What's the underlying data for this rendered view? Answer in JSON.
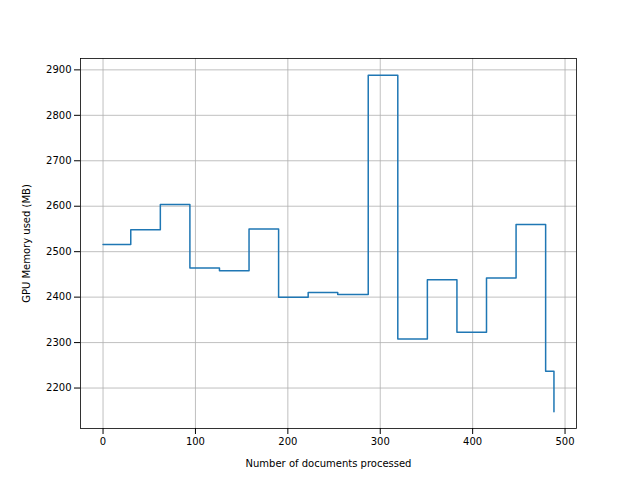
{
  "chart_data": {
    "type": "line",
    "x_label": "Number of documents processed",
    "y_label": "GPU Memory used (MB)",
    "x": [
      0,
      30,
      62,
      94,
      126,
      158,
      190,
      222,
      254,
      287,
      319,
      351,
      383,
      415,
      447,
      479,
      488
    ],
    "values": [
      2516,
      2548,
      2604,
      2464,
      2458,
      2550,
      2400,
      2410,
      2406,
      2888,
      2308,
      2438,
      2323,
      2442,
      2560,
      2237,
      2148
    ],
    "color": "#1f77b4",
    "line_style": "steps",
    "xlim": [
      -24.4,
      512.4
    ],
    "ylim": [
      2111,
      2925
    ],
    "xticks": [
      0,
      100,
      200,
      300,
      400,
      500
    ],
    "yticks": [
      2200,
      2300,
      2400,
      2500,
      2600,
      2700,
      2800,
      2900
    ],
    "grid": true
  }
}
